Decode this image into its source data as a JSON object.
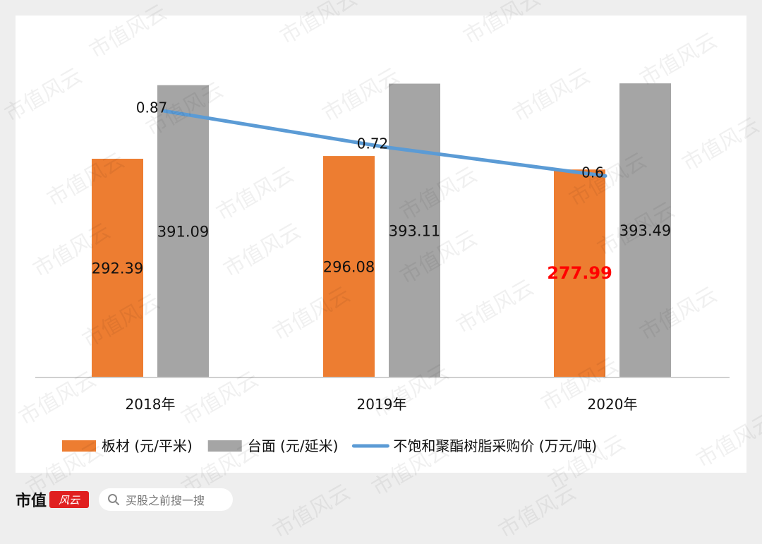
{
  "chart_data": {
    "type": "bar",
    "categories": [
      "2018年",
      "2019年",
      "2020年"
    ],
    "series": [
      {
        "name": "板材 (元/平米)",
        "kind": "bar",
        "color": "#ed7d31",
        "values": [
          292.39,
          296.08,
          277.99
        ]
      },
      {
        "name": "台面 (元/延米)",
        "kind": "bar",
        "color": "#a5a5a5",
        "values": [
          391.09,
          393.11,
          393.49
        ]
      },
      {
        "name": "不饱和聚酯树脂采购价 (万元/吨)",
        "kind": "line",
        "color": "#5b9bd5",
        "values": [
          0.87,
          0.72,
          0.6
        ]
      }
    ],
    "bar_value_labels": [
      [
        "292.39",
        "296.08",
        "277.99"
      ],
      [
        "391.09",
        "393.11",
        "393.49"
      ]
    ],
    "line_value_labels": [
      "0.87",
      "0.72",
      "0.6"
    ],
    "highlight": {
      "series": 0,
      "index": 2,
      "color": "#ff0000"
    },
    "ylim_bars": [
      0,
      440
    ],
    "ylim_line": [
      0,
      1.0
    ],
    "grid": false,
    "legend_position": "bottom"
  },
  "footer": {
    "brand": "市值",
    "seal": "风云",
    "search_placeholder": "买股之前搜一搜"
  },
  "watermark": "市值风云"
}
